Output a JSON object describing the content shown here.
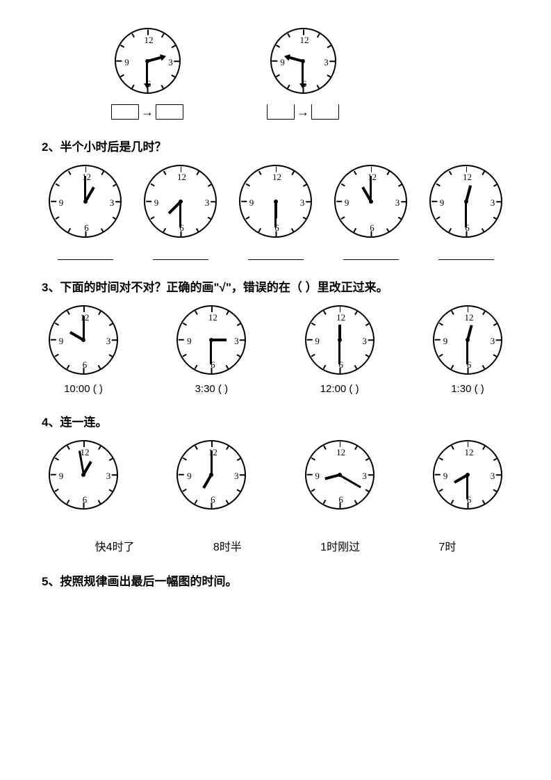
{
  "section1": {
    "clocks": [
      {
        "size": 95,
        "hourAngle": 75,
        "minuteAngle": 180,
        "arrowHands": true,
        "boxStyle": "closed"
      },
      {
        "size": 95,
        "hourAngle": 285,
        "minuteAngle": 180,
        "arrowHands": true,
        "boxStyle": "open"
      }
    ]
  },
  "q2": {
    "title": "2、半个小时后是几时？",
    "clocks": [
      {
        "size": 105,
        "hourAngle": 30,
        "minuteAngle": 0
      },
      {
        "size": 105,
        "hourAngle": 225,
        "minuteAngle": 180
      },
      {
        "size": 105,
        "hourAngle": 180,
        "minuteAngle": 180
      },
      {
        "size": 105,
        "hourAngle": 330,
        "minuteAngle": 0
      },
      {
        "size": 105,
        "hourAngle": 15,
        "minuteAngle": 180
      }
    ]
  },
  "q3": {
    "title": "3、下面的时间对不对？正确的画\"√\"，错误的在（    ）里改正过来。",
    "clocks": [
      {
        "size": 100,
        "hourAngle": 300,
        "minuteAngle": 0,
        "label": "10:00  (          )"
      },
      {
        "size": 100,
        "hourAngle": 90,
        "minuteAngle": 180,
        "label": "3:30  (          )"
      },
      {
        "size": 100,
        "hourAngle": 0,
        "minuteAngle": 180,
        "label": "12:00  (          )"
      },
      {
        "size": 100,
        "hourAngle": 15,
        "minuteAngle": 180,
        "label": "1:30  (          )"
      }
    ]
  },
  "q4": {
    "title": "4、连一连。",
    "clocks": [
      {
        "size": 100,
        "hourAngle": 30,
        "minuteAngle": 350
      },
      {
        "size": 100,
        "hourAngle": 210,
        "minuteAngle": 0
      },
      {
        "size": 100,
        "hourAngle": 255,
        "minuteAngle": 120
      },
      {
        "size": 100,
        "hourAngle": 240,
        "minuteAngle": 180
      }
    ],
    "labels": [
      "快4时了",
      "8时半",
      "1时刚过",
      "7时"
    ]
  },
  "q5": {
    "title": "5、按照规律画出最后一幅图的时间。"
  },
  "clockNumbers": [
    "12",
    "3",
    "6",
    "9"
  ],
  "colors": {
    "stroke": "#000000",
    "bg": "#ffffff"
  }
}
